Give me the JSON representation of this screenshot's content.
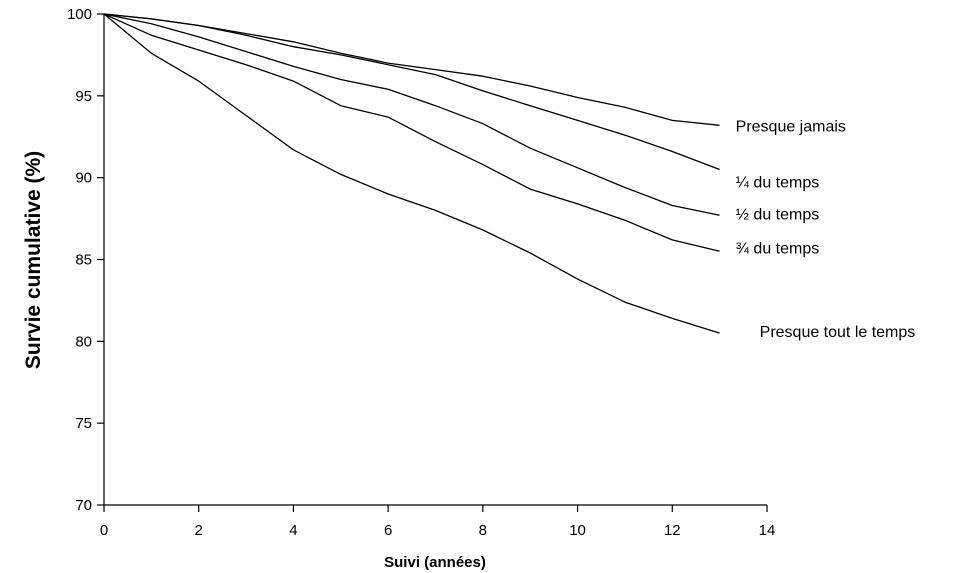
{
  "chart_data": {
    "type": "line",
    "title": "",
    "xlabel": "Suivi (années)",
    "ylabel": "Survie cumulative (%)",
    "xlim": [
      0,
      14
    ],
    "ylim": [
      70,
      100
    ],
    "xticks": [
      0,
      2,
      4,
      6,
      8,
      10,
      12,
      14
    ],
    "yticks": [
      70,
      75,
      80,
      85,
      90,
      95,
      100
    ],
    "grid": false,
    "legend": "inline labels at line ends",
    "line_color": "#000000",
    "series": [
      {
        "name": "Presque jamais",
        "x": [
          0,
          1,
          2,
          3,
          4,
          5,
          6,
          7,
          8,
          9,
          10,
          11,
          12,
          13
        ],
        "y": [
          100,
          99.7,
          99.3,
          98.8,
          98.3,
          97.6,
          97.0,
          96.6,
          96.2,
          95.6,
          94.9,
          94.3,
          93.5,
          93.2
        ]
      },
      {
        "name": "¼ du temps",
        "x": [
          0,
          1,
          2,
          3,
          4,
          5,
          6,
          7,
          8,
          9,
          10,
          11,
          12,
          13
        ],
        "y": [
          100,
          99.7,
          99.3,
          98.7,
          98.0,
          97.5,
          96.9,
          96.3,
          95.3,
          94.4,
          93.5,
          92.6,
          91.6,
          90.5
        ]
      },
      {
        "name": "½ du temps",
        "x": [
          0,
          1,
          2,
          3,
          4,
          5,
          6,
          7,
          8,
          9,
          10,
          11,
          12,
          13
        ],
        "y": [
          100,
          99.4,
          98.6,
          97.7,
          96.8,
          96.0,
          95.4,
          94.4,
          93.3,
          91.8,
          90.6,
          89.4,
          88.3,
          87.7
        ]
      },
      {
        "name": "¾ du temps",
        "x": [
          0,
          1,
          2,
          3,
          4,
          5,
          6,
          7,
          8,
          9,
          10,
          11,
          12,
          13
        ],
        "y": [
          100,
          98.7,
          97.8,
          96.9,
          95.9,
          94.4,
          93.7,
          92.2,
          90.8,
          89.3,
          88.4,
          87.4,
          86.2,
          85.5
        ]
      },
      {
        "name": "Presque tout le temps",
        "x": [
          0,
          1,
          2,
          3,
          4,
          5,
          6,
          7,
          8,
          9,
          10,
          11,
          12,
          13
        ],
        "y": [
          100,
          97.6,
          95.9,
          93.8,
          91.7,
          90.2,
          89.0,
          88.0,
          86.8,
          85.4,
          83.8,
          82.4,
          81.4,
          80.5
        ]
      }
    ]
  }
}
